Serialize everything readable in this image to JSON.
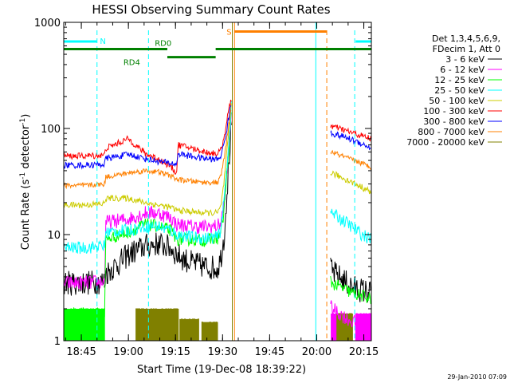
{
  "chart_data": {
    "type": "line",
    "title": "HESSI Observing Summary Count Rates",
    "xlabel": "Start Time (19-Dec-08 18:39:22)",
    "ylabel_main": "Count Rate (s",
    "ylabel_sup1": "-1",
    "ylabel_mid": " detector",
    "ylabel_sup2": "-1",
    "ylabel_end": ")",
    "y_scale": "log",
    "ylim": [
      1,
      1000
    ],
    "xlim_minutes": [
      0,
      98
    ],
    "x_ticks": [
      {
        "label": "18:45",
        "minutes": 5.6
      },
      {
        "label": "19:00",
        "minutes": 20.6
      },
      {
        "label": "19:15",
        "minutes": 35.6
      },
      {
        "label": "19:30",
        "minutes": 50.6
      },
      {
        "label": "19:45",
        "minutes": 65.6
      },
      {
        "label": "20:00",
        "minutes": 80.6
      },
      {
        "label": "20:15",
        "minutes": 95.6
      }
    ],
    "y_ticks": [
      {
        "label": "1",
        "value": 1
      },
      {
        "label": "10",
        "value": 10
      },
      {
        "label": "100",
        "value": 100
      },
      {
        "label": "1000",
        "value": 1000
      }
    ],
    "grid": false,
    "legend_position": "right",
    "legend_header": [
      "Det 1,3,4,5,6,9,",
      "FDecim 1, Att 0"
    ],
    "gaps": [
      [
        53.5,
        85.0
      ]
    ],
    "series": [
      {
        "name": "3 - 6 keV",
        "color": "#000000",
        "noise": 0.12,
        "points": [
          [
            0,
            3.5
          ],
          [
            6,
            3.5
          ],
          [
            13,
            3.6
          ],
          [
            13.4,
            4.3
          ],
          [
            18,
            5.5
          ],
          [
            20.6,
            6.5
          ],
          [
            26,
            7.8
          ],
          [
            30,
            8.2
          ],
          [
            34,
            7.5
          ],
          [
            36,
            6.5
          ],
          [
            40,
            5.5
          ],
          [
            45,
            5.0
          ],
          [
            49,
            4.8
          ],
          [
            50,
            6
          ],
          [
            51,
            9
          ],
          [
            52,
            25
          ],
          [
            53,
            70
          ],
          [
            53.4,
            120
          ],
          [
            85.4,
            4.5
          ],
          [
            92,
            3.2
          ],
          [
            98,
            2.8
          ]
        ]
      },
      {
        "name": "6 - 12 keV",
        "color": "#ff00ff",
        "noise": 0.07,
        "points": [
          [
            0,
            3.5
          ],
          [
            6,
            3.5
          ],
          [
            13,
            3.6
          ],
          [
            13.4,
            13
          ],
          [
            20.6,
            14
          ],
          [
            26,
            16
          ],
          [
            30,
            16
          ],
          [
            34,
            14.5
          ],
          [
            36,
            12.5
          ],
          [
            40,
            12
          ],
          [
            45,
            11.8
          ],
          [
            49,
            12
          ],
          [
            50,
            13
          ],
          [
            51,
            18
          ],
          [
            52,
            40
          ],
          [
            53,
            100
          ],
          [
            53.4,
            150
          ],
          [
            85.4,
            2.0
          ],
          [
            92,
            1.5
          ],
          [
            98,
            1.4
          ]
        ]
      },
      {
        "name": "12 - 25 keV",
        "color": "#00ff00",
        "noise": 0.06,
        "points": [
          [
            0,
            1.8
          ],
          [
            13,
            1.8
          ],
          [
            13.4,
            9
          ],
          [
            20.6,
            10.5
          ],
          [
            26,
            12.5
          ],
          [
            30,
            12
          ],
          [
            34,
            11
          ],
          [
            36,
            9
          ],
          [
            40,
            9
          ],
          [
            45,
            8.8
          ],
          [
            49,
            9.2
          ],
          [
            50,
            10.5
          ],
          [
            51,
            16
          ],
          [
            52,
            38
          ],
          [
            53,
            95
          ],
          [
            53.4,
            140
          ],
          [
            85.4,
            3.5
          ],
          [
            92,
            2.8
          ],
          [
            98,
            2.5
          ]
        ]
      },
      {
        "name": "25 - 50 keV",
        "color": "#00ffff",
        "noise": 0.06,
        "points": [
          [
            0,
            7.5
          ],
          [
            6,
            7.5
          ],
          [
            13,
            7.8
          ],
          [
            13.4,
            10.5
          ],
          [
            20.6,
            11
          ],
          [
            26,
            12
          ],
          [
            30,
            12
          ],
          [
            34,
            11
          ],
          [
            36,
            10
          ],
          [
            40,
            9.5
          ],
          [
            45,
            9.2
          ],
          [
            49,
            9.5
          ],
          [
            50,
            11
          ],
          [
            51,
            20
          ],
          [
            52,
            45
          ],
          [
            53,
            110
          ],
          [
            53.4,
            160
          ],
          [
            85.4,
            16
          ],
          [
            90,
            13
          ],
          [
            95,
            10
          ],
          [
            98,
            9
          ]
        ]
      },
      {
        "name": "50 - 100 keV",
        "color": "#cccc00",
        "noise": 0.03,
        "points": [
          [
            0,
            19
          ],
          [
            6,
            19
          ],
          [
            13,
            19.5
          ],
          [
            13.4,
            22
          ],
          [
            20.6,
            22
          ],
          [
            26,
            20
          ],
          [
            30,
            19
          ],
          [
            34,
            18
          ],
          [
            36,
            17
          ],
          [
            40,
            16.5
          ],
          [
            45,
            16
          ],
          [
            49,
            16
          ],
          [
            50,
            18
          ],
          [
            51,
            30
          ],
          [
            52,
            60
          ],
          [
            53,
            130
          ],
          [
            53.4,
            170
          ],
          [
            85.4,
            38
          ],
          [
            90,
            33
          ],
          [
            95,
            28
          ],
          [
            98,
            25
          ]
        ]
      },
      {
        "name": "100 - 300 keV",
        "color": "#ff0000",
        "noise": 0.03,
        "points": [
          [
            0,
            55
          ],
          [
            6,
            55
          ],
          [
            13,
            56
          ],
          [
            13.4,
            65
          ],
          [
            20.6,
            80
          ],
          [
            26,
            58
          ],
          [
            30,
            52
          ],
          [
            34,
            44
          ],
          [
            36,
            38
          ],
          [
            36.4,
            70
          ],
          [
            40,
            66
          ],
          [
            45,
            60
          ],
          [
            49,
            58
          ],
          [
            50,
            62
          ],
          [
            51,
            80
          ],
          [
            52,
            120
          ],
          [
            53,
            170
          ],
          [
            53.4,
            190
          ],
          [
            85.4,
            105
          ],
          [
            90,
            95
          ],
          [
            95,
            85
          ],
          [
            98,
            80
          ]
        ]
      },
      {
        "name": "300 - 800 keV",
        "color": "#0000ff",
        "noise": 0.03,
        "points": [
          [
            0,
            45
          ],
          [
            6,
            45
          ],
          [
            13,
            46
          ],
          [
            13.4,
            52
          ],
          [
            20.6,
            57
          ],
          [
            26,
            52
          ],
          [
            30,
            49
          ],
          [
            34,
            47
          ],
          [
            36,
            46
          ],
          [
            36.4,
            58
          ],
          [
            40,
            55
          ],
          [
            45,
            52
          ],
          [
            49,
            51
          ],
          [
            50,
            55
          ],
          [
            51,
            70
          ],
          [
            52,
            100
          ],
          [
            53,
            150
          ],
          [
            53.4,
            170
          ],
          [
            85.4,
            90
          ],
          [
            90,
            82
          ],
          [
            95,
            72
          ],
          [
            98,
            65
          ]
        ]
      },
      {
        "name": "800 - 7000 keV",
        "color": "#ff8000",
        "noise": 0.025,
        "points": [
          [
            0,
            29
          ],
          [
            6,
            29
          ],
          [
            13,
            30
          ],
          [
            13.4,
            35
          ],
          [
            20.6,
            38
          ],
          [
            26,
            40
          ],
          [
            30,
            39
          ],
          [
            34,
            36
          ],
          [
            36,
            33
          ],
          [
            40,
            32
          ],
          [
            45,
            31
          ],
          [
            49,
            31
          ],
          [
            50,
            35
          ],
          [
            51,
            50
          ],
          [
            52,
            80
          ],
          [
            53,
            130
          ],
          [
            53.4,
            150
          ],
          [
            85.4,
            60
          ],
          [
            90,
            53
          ],
          [
            95,
            47
          ],
          [
            98,
            43
          ]
        ]
      },
      {
        "name": "7000 - 20000 keV",
        "color": "#808000",
        "noise": 0.0,
        "points": []
      }
    ],
    "steps": [
      {
        "name": "12 - 25 keV",
        "color": "#00ff00",
        "segments": [
          [
            0,
            13.2,
            2,
            1
          ]
        ]
      },
      {
        "name": "7000 - 20000 keV",
        "color": "#808000",
        "segments": [
          [
            23,
            33,
            2,
            1
          ],
          [
            33,
            36.5,
            2,
            1
          ],
          [
            37,
            43,
            1.6,
            1
          ],
          [
            44,
            49,
            1.5,
            1
          ]
        ]
      },
      {
        "name": "6 - 12 keV",
        "color": "#ff00ff",
        "segments": [
          [
            85.2,
            89,
            1.8,
            1
          ],
          [
            93,
            98,
            1.8,
            1
          ]
        ]
      },
      {
        "name": "7000 - 20000 keV",
        "color": "#808000",
        "segments": [
          [
            87,
            92,
            1.8,
            1
          ]
        ]
      }
    ],
    "markers": [
      {
        "label": "N",
        "color": "#00ffff",
        "style": "solid-then-dashed",
        "level": 660,
        "segments": [
          [
            0,
            10.5
          ],
          [
            93,
            98
          ]
        ],
        "vlines_solid": [
          0,
          80.3
        ],
        "vlines_dashed": [
          10.6,
          27.0,
          92.7
        ]
      },
      {
        "label": "S",
        "color": "#ff8000",
        "style": "solid",
        "level": 820,
        "segments": [
          [
            54.4,
            83.8
          ]
        ],
        "vlines_solid": [
          54.4
        ],
        "vlines_dashed": [
          83.8
        ]
      }
    ],
    "annotations": [
      {
        "label": "RD0",
        "color": "#008000",
        "level": 560,
        "segments": [
          [
            0,
            33
          ],
          [
            48.4,
            98
          ]
        ],
        "text_at": 29
      },
      {
        "label": "RD4",
        "color": "#008000",
        "level": 470,
        "segments": [
          [
            33,
            48.4
          ]
        ],
        "text_at": 19
      }
    ],
    "olive_vline": 53.7
  },
  "footer": {
    "timestamp": "29-Jan-2010 07:09"
  }
}
